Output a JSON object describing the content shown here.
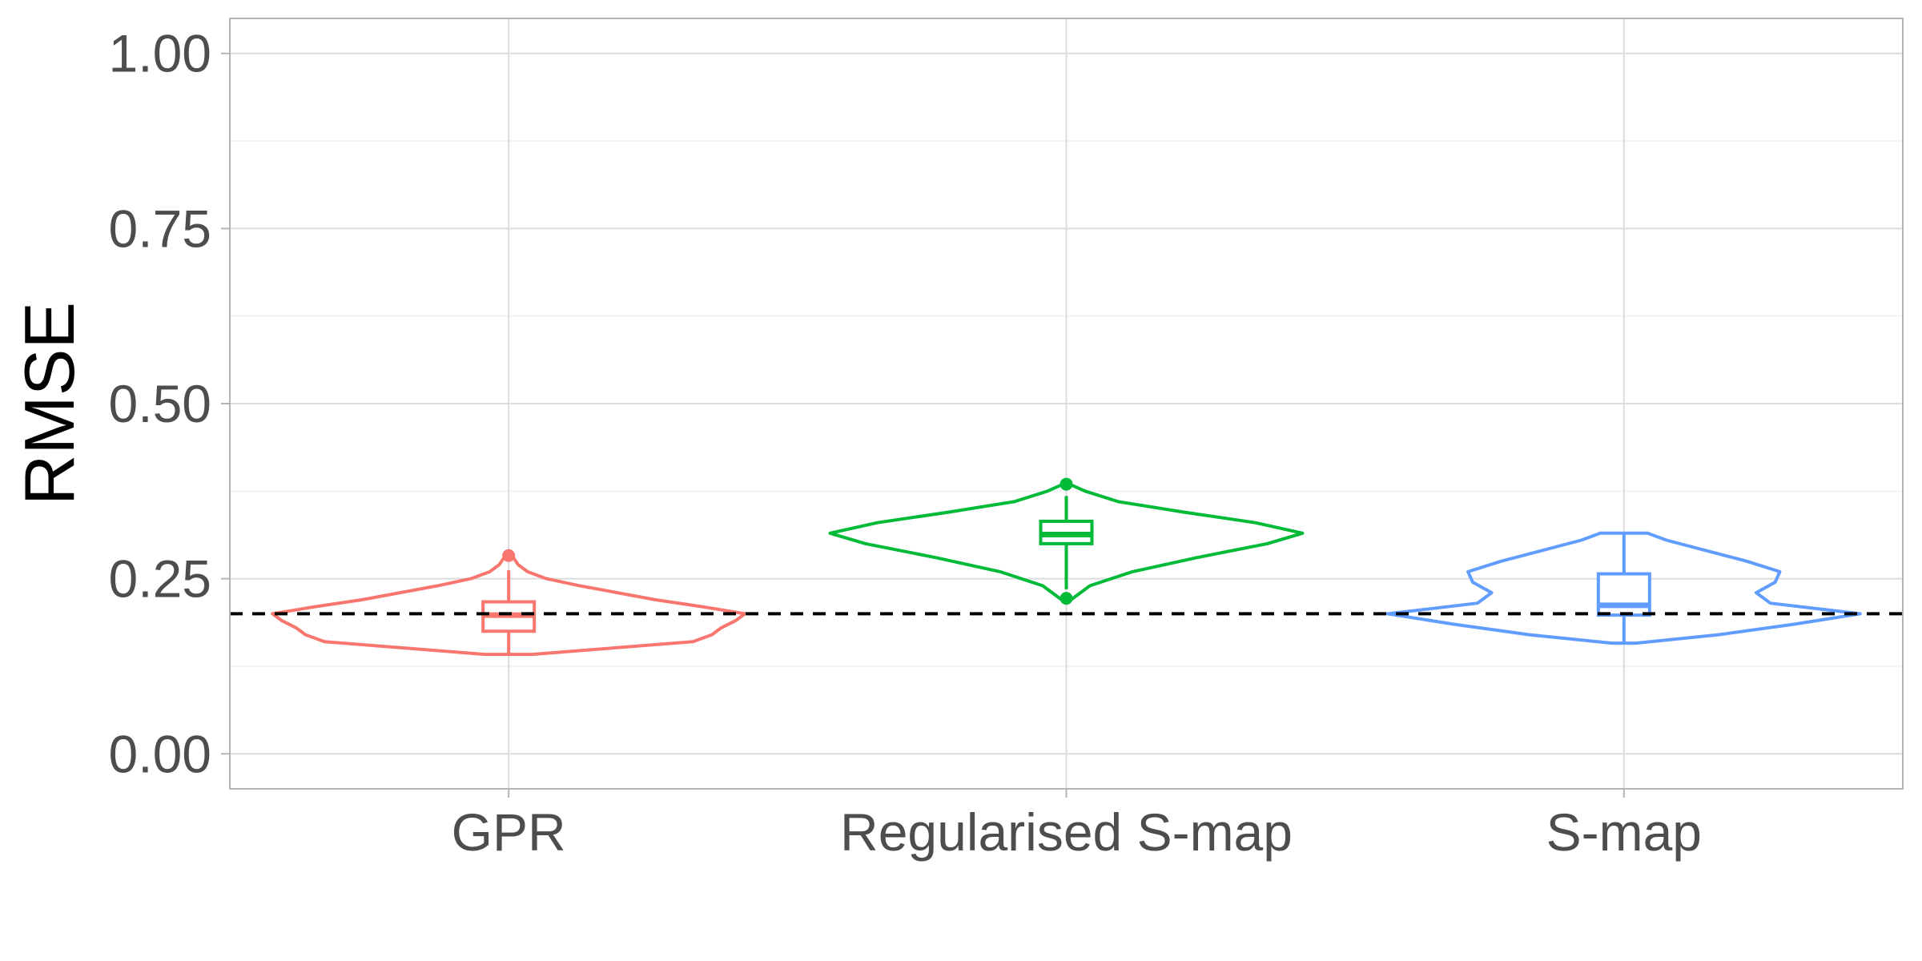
{
  "chart_data": {
    "type": "violin",
    "title": "",
    "xlabel": "",
    "ylabel": "RMSE",
    "ylim": [
      -0.05,
      1.05
    ],
    "y_ticks": [
      "0.00",
      "0.25",
      "0.50",
      "0.75",
      "1.00"
    ],
    "y_tick_values": [
      0.0,
      0.25,
      0.5,
      0.75,
      1.0
    ],
    "grid": true,
    "legend": "none",
    "reference_line": {
      "y": 0.2,
      "style": "dashed",
      "color": "#000000"
    },
    "categories": [
      "GPR",
      "Regularised S-map",
      "S-map"
    ],
    "series": [
      {
        "category": "GPR",
        "color": "#F8766D",
        "min": 0.142,
        "max": 0.283,
        "box": {
          "whisker_low": 0.142,
          "q1": 0.175,
          "median": 0.198,
          "q3": 0.217,
          "whisker_high": 0.262
        },
        "outliers": [
          0.283
        ],
        "density": [
          [
            0.142,
            0.1
          ],
          [
            0.15,
            0.4
          ],
          [
            0.16,
            0.78
          ],
          [
            0.17,
            0.86
          ],
          [
            0.18,
            0.9
          ],
          [
            0.19,
            0.96
          ],
          [
            0.2,
            1.0
          ],
          [
            0.21,
            0.82
          ],
          [
            0.22,
            0.62
          ],
          [
            0.23,
            0.46
          ],
          [
            0.24,
            0.3
          ],
          [
            0.25,
            0.16
          ],
          [
            0.26,
            0.08
          ],
          [
            0.27,
            0.04
          ],
          [
            0.28,
            0.02
          ],
          [
            0.283,
            0.0
          ]
        ]
      },
      {
        "category": "Regularised S-map",
        "color": "#00BA38",
        "min": 0.215,
        "max": 0.387,
        "box": {
          "whisker_low": 0.235,
          "q1": 0.3,
          "median": 0.313,
          "q3": 0.332,
          "whisker_high": 0.368
        },
        "outliers": [
          0.222,
          0.385
        ],
        "density": [
          [
            0.215,
            0.0
          ],
          [
            0.225,
            0.04
          ],
          [
            0.24,
            0.1
          ],
          [
            0.26,
            0.28
          ],
          [
            0.28,
            0.55
          ],
          [
            0.3,
            0.85
          ],
          [
            0.315,
            1.0
          ],
          [
            0.33,
            0.8
          ],
          [
            0.345,
            0.5
          ],
          [
            0.36,
            0.22
          ],
          [
            0.375,
            0.08
          ],
          [
            0.387,
            0.0
          ]
        ]
      },
      {
        "category": "S-map",
        "color": "#619CFF",
        "min": 0.158,
        "max": 0.315,
        "box": {
          "whisker_low": 0.158,
          "q1": 0.198,
          "median": 0.212,
          "q3": 0.257,
          "whisker_high": 0.315
        },
        "outliers": [],
        "density": [
          [
            0.158,
            0.05
          ],
          [
            0.17,
            0.4
          ],
          [
            0.185,
            0.72
          ],
          [
            0.2,
            1.0
          ],
          [
            0.215,
            0.62
          ],
          [
            0.23,
            0.56
          ],
          [
            0.245,
            0.64
          ],
          [
            0.26,
            0.66
          ],
          [
            0.275,
            0.52
          ],
          [
            0.29,
            0.35
          ],
          [
            0.305,
            0.18
          ],
          [
            0.315,
            0.1
          ]
        ]
      }
    ]
  }
}
